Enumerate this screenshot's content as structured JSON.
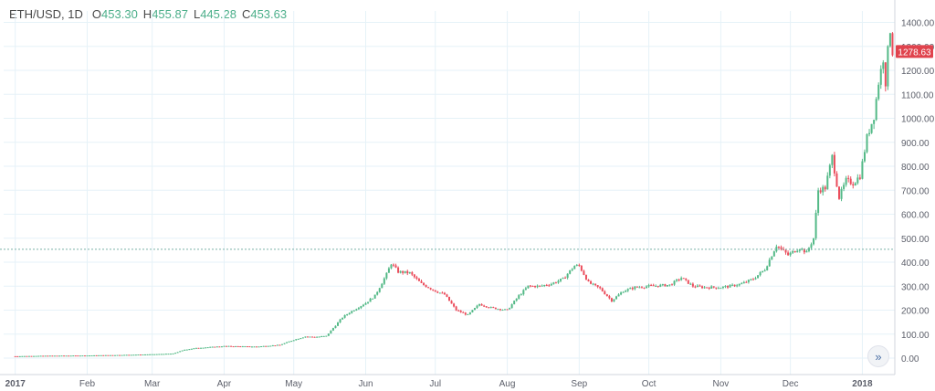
{
  "header": {
    "symbol": "ETH/USD, 1D",
    "ohlc": [
      {
        "label": "O",
        "value": "453.30"
      },
      {
        "label": "H",
        "value": "455.87"
      },
      {
        "label": "L",
        "value": "445.28"
      },
      {
        "label": "C",
        "value": "453.63"
      }
    ]
  },
  "price_badge": "1278.63",
  "icons": {
    "scroll_button": "double-chevron-right-icon"
  },
  "colors": {
    "up": "#53b987",
    "down": "#eb4d5c",
    "grid": "#e6f2f8",
    "crosshair": "#7bb1a8",
    "badge": "#e0434d",
    "axis_text": "#5d606b"
  },
  "chart_data": {
    "type": "candlestick",
    "title": "ETH/USD, 1D",
    "xlabel": "",
    "ylabel": "",
    "ylim": [
      -50,
      1450
    ],
    "y_ticks": [
      "0.00",
      "100.00",
      "200.00",
      "300.00",
      "400.00",
      "500.00",
      "600.00",
      "700.00",
      "800.00",
      "900.00",
      "1000.00",
      "1100.00",
      "1200.00",
      "1300.00",
      "1400.00"
    ],
    "x_ticks": [
      "2017",
      "Feb",
      "Mar",
      "Apr",
      "May",
      "Jun",
      "Jul",
      "Aug",
      "Sep",
      "Oct",
      "Nov",
      "Dec",
      "2018"
    ],
    "grid": true,
    "last_price": 1278.63,
    "crosshair_price": 453.63,
    "series": [
      {
        "points": [
          [
            "2017-01-01",
            8
          ],
          [
            "2017-01-15",
            10
          ],
          [
            "2017-02-01",
            11
          ],
          [
            "2017-02-15",
            13
          ],
          [
            "2017-03-01",
            16
          ],
          [
            "2017-03-10",
            19
          ],
          [
            "2017-03-15",
            35
          ],
          [
            "2017-03-20",
            42
          ],
          [
            "2017-04-01",
            50
          ],
          [
            "2017-04-15",
            48
          ],
          [
            "2017-04-25",
            55
          ],
          [
            "2017-05-01",
            76
          ],
          [
            "2017-05-06",
            90
          ],
          [
            "2017-05-10",
            88
          ],
          [
            "2017-05-15",
            92
          ],
          [
            "2017-05-22",
            170
          ],
          [
            "2017-05-25",
            190
          ],
          [
            "2017-06-01",
            230
          ],
          [
            "2017-06-05",
            260
          ],
          [
            "2017-06-10",
            350
          ],
          [
            "2017-06-12",
            395
          ],
          [
            "2017-06-15",
            360
          ],
          [
            "2017-06-20",
            355
          ],
          [
            "2017-06-25",
            310
          ],
          [
            "2017-07-01",
            280
          ],
          [
            "2017-07-05",
            265
          ],
          [
            "2017-07-10",
            200
          ],
          [
            "2017-07-15",
            180
          ],
          [
            "2017-07-20",
            225
          ],
          [
            "2017-07-25",
            210
          ],
          [
            "2017-08-01",
            200
          ],
          [
            "2017-08-06",
            260
          ],
          [
            "2017-08-10",
            300
          ],
          [
            "2017-08-15",
            300
          ],
          [
            "2017-08-20",
            310
          ],
          [
            "2017-08-25",
            330
          ],
          [
            "2017-08-30",
            385
          ],
          [
            "2017-09-01",
            385
          ],
          [
            "2017-09-05",
            315
          ],
          [
            "2017-09-10",
            290
          ],
          [
            "2017-09-15",
            240
          ],
          [
            "2017-09-20",
            280
          ],
          [
            "2017-09-25",
            295
          ],
          [
            "2017-10-01",
            300
          ],
          [
            "2017-10-10",
            305
          ],
          [
            "2017-10-15",
            335
          ],
          [
            "2017-10-20",
            300
          ],
          [
            "2017-10-25",
            295
          ],
          [
            "2017-11-01",
            295
          ],
          [
            "2017-11-05",
            300
          ],
          [
            "2017-11-10",
            310
          ],
          [
            "2017-11-15",
            330
          ],
          [
            "2017-11-20",
            370
          ],
          [
            "2017-11-25",
            470
          ],
          [
            "2017-11-30",
            430
          ],
          [
            "2017-12-05",
            460
          ],
          [
            "2017-12-08",
            440
          ],
          [
            "2017-12-11",
            500
          ],
          [
            "2017-12-13",
            700
          ],
          [
            "2017-12-16",
            710
          ],
          [
            "2017-12-19",
            840
          ],
          [
            "2017-12-22",
            670
          ],
          [
            "2017-12-25",
            740
          ],
          [
            "2017-12-28",
            730
          ],
          [
            "2017-12-31",
            760
          ],
          [
            "2018-01-03",
            920
          ],
          [
            "2018-01-06",
            1010
          ],
          [
            "2018-01-08",
            1150
          ],
          [
            "2018-01-10",
            1250
          ],
          [
            "2018-01-11",
            1150
          ],
          [
            "2018-01-12",
            1280
          ],
          [
            "2018-01-13",
            1370
          ],
          [
            "2018-01-14",
            1278.63
          ]
        ]
      }
    ]
  }
}
